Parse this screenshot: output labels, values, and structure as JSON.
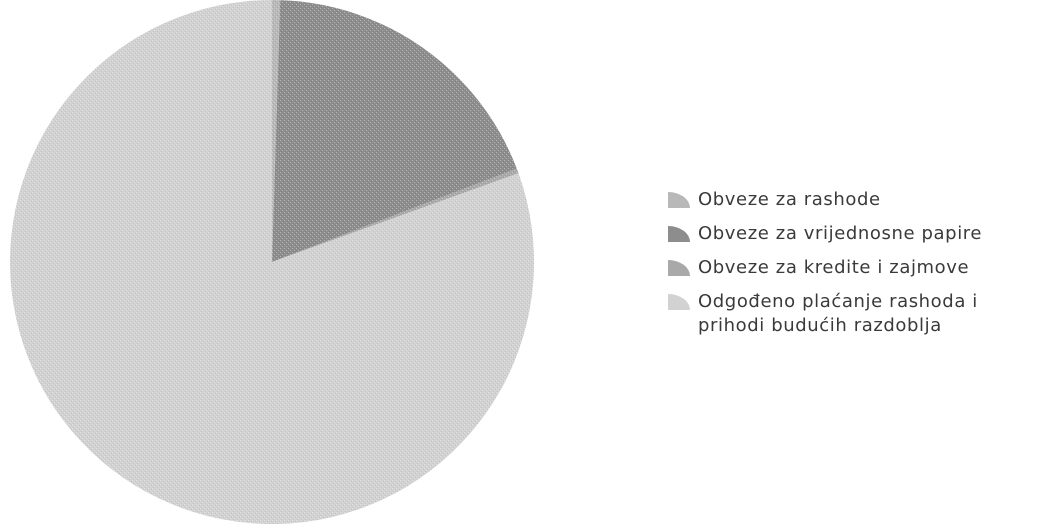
{
  "chart_data": {
    "type": "pie",
    "title": "",
    "legend_position": "right",
    "start_angle_deg": 0,
    "direction": "clockwise",
    "slices": [
      {
        "label": "Obveze za rashode",
        "value": 0.5,
        "color": "#b8b8b8"
      },
      {
        "label": "Obveze za vrijednosne papire",
        "value": 18.7,
        "color": "#8d8d8d"
      },
      {
        "label": "Obveze za kredite i zajmove",
        "value": 0.3,
        "color": "#a9a9a9"
      },
      {
        "label": "Odgođeno plaćanje rashoda i prihodi budućih razdoblja",
        "value": 80.5,
        "color": "#d2d2d2",
        "label_lines": [
          "Odgođeno plaćanje rashoda i",
          "prihodi budućih razdoblja"
        ]
      }
    ]
  }
}
